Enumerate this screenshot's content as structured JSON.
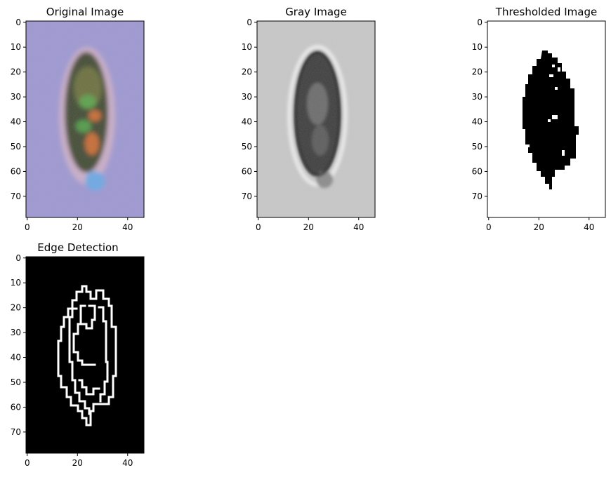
{
  "figure": {
    "background": "#ffffff",
    "image_shape": {
      "rows": 79,
      "cols": 47
    },
    "x_ticks": [
      0,
      20,
      40
    ],
    "y_ticks": [
      0,
      10,
      20,
      30,
      40,
      50,
      60,
      70
    ],
    "panels": [
      {
        "id": "original",
        "title": "Original Image",
        "kind": "rgb",
        "background_color": "#9d97d2",
        "object_colors": [
          "#3d4a2e",
          "#6a6e3a",
          "#5aa04a",
          "#c76a30",
          "#6aa8e6",
          "#d8b8c8"
        ]
      },
      {
        "id": "gray",
        "title": "Gray Image",
        "kind": "gray",
        "background_color": "#c8c8c8",
        "object_colors": [
          "#1e1e1e",
          "#4a4a4a",
          "#8a8a8a",
          "#eaeaea"
        ]
      },
      {
        "id": "thresholded",
        "title": "Thresholded Image",
        "kind": "binary",
        "background_color": "#ffffff",
        "object_colors": [
          "#000000"
        ]
      },
      {
        "id": "edges",
        "title": "Edge Detection",
        "kind": "edges",
        "background_color": "#000000",
        "object_colors": [
          "#ffffff"
        ]
      }
    ]
  }
}
